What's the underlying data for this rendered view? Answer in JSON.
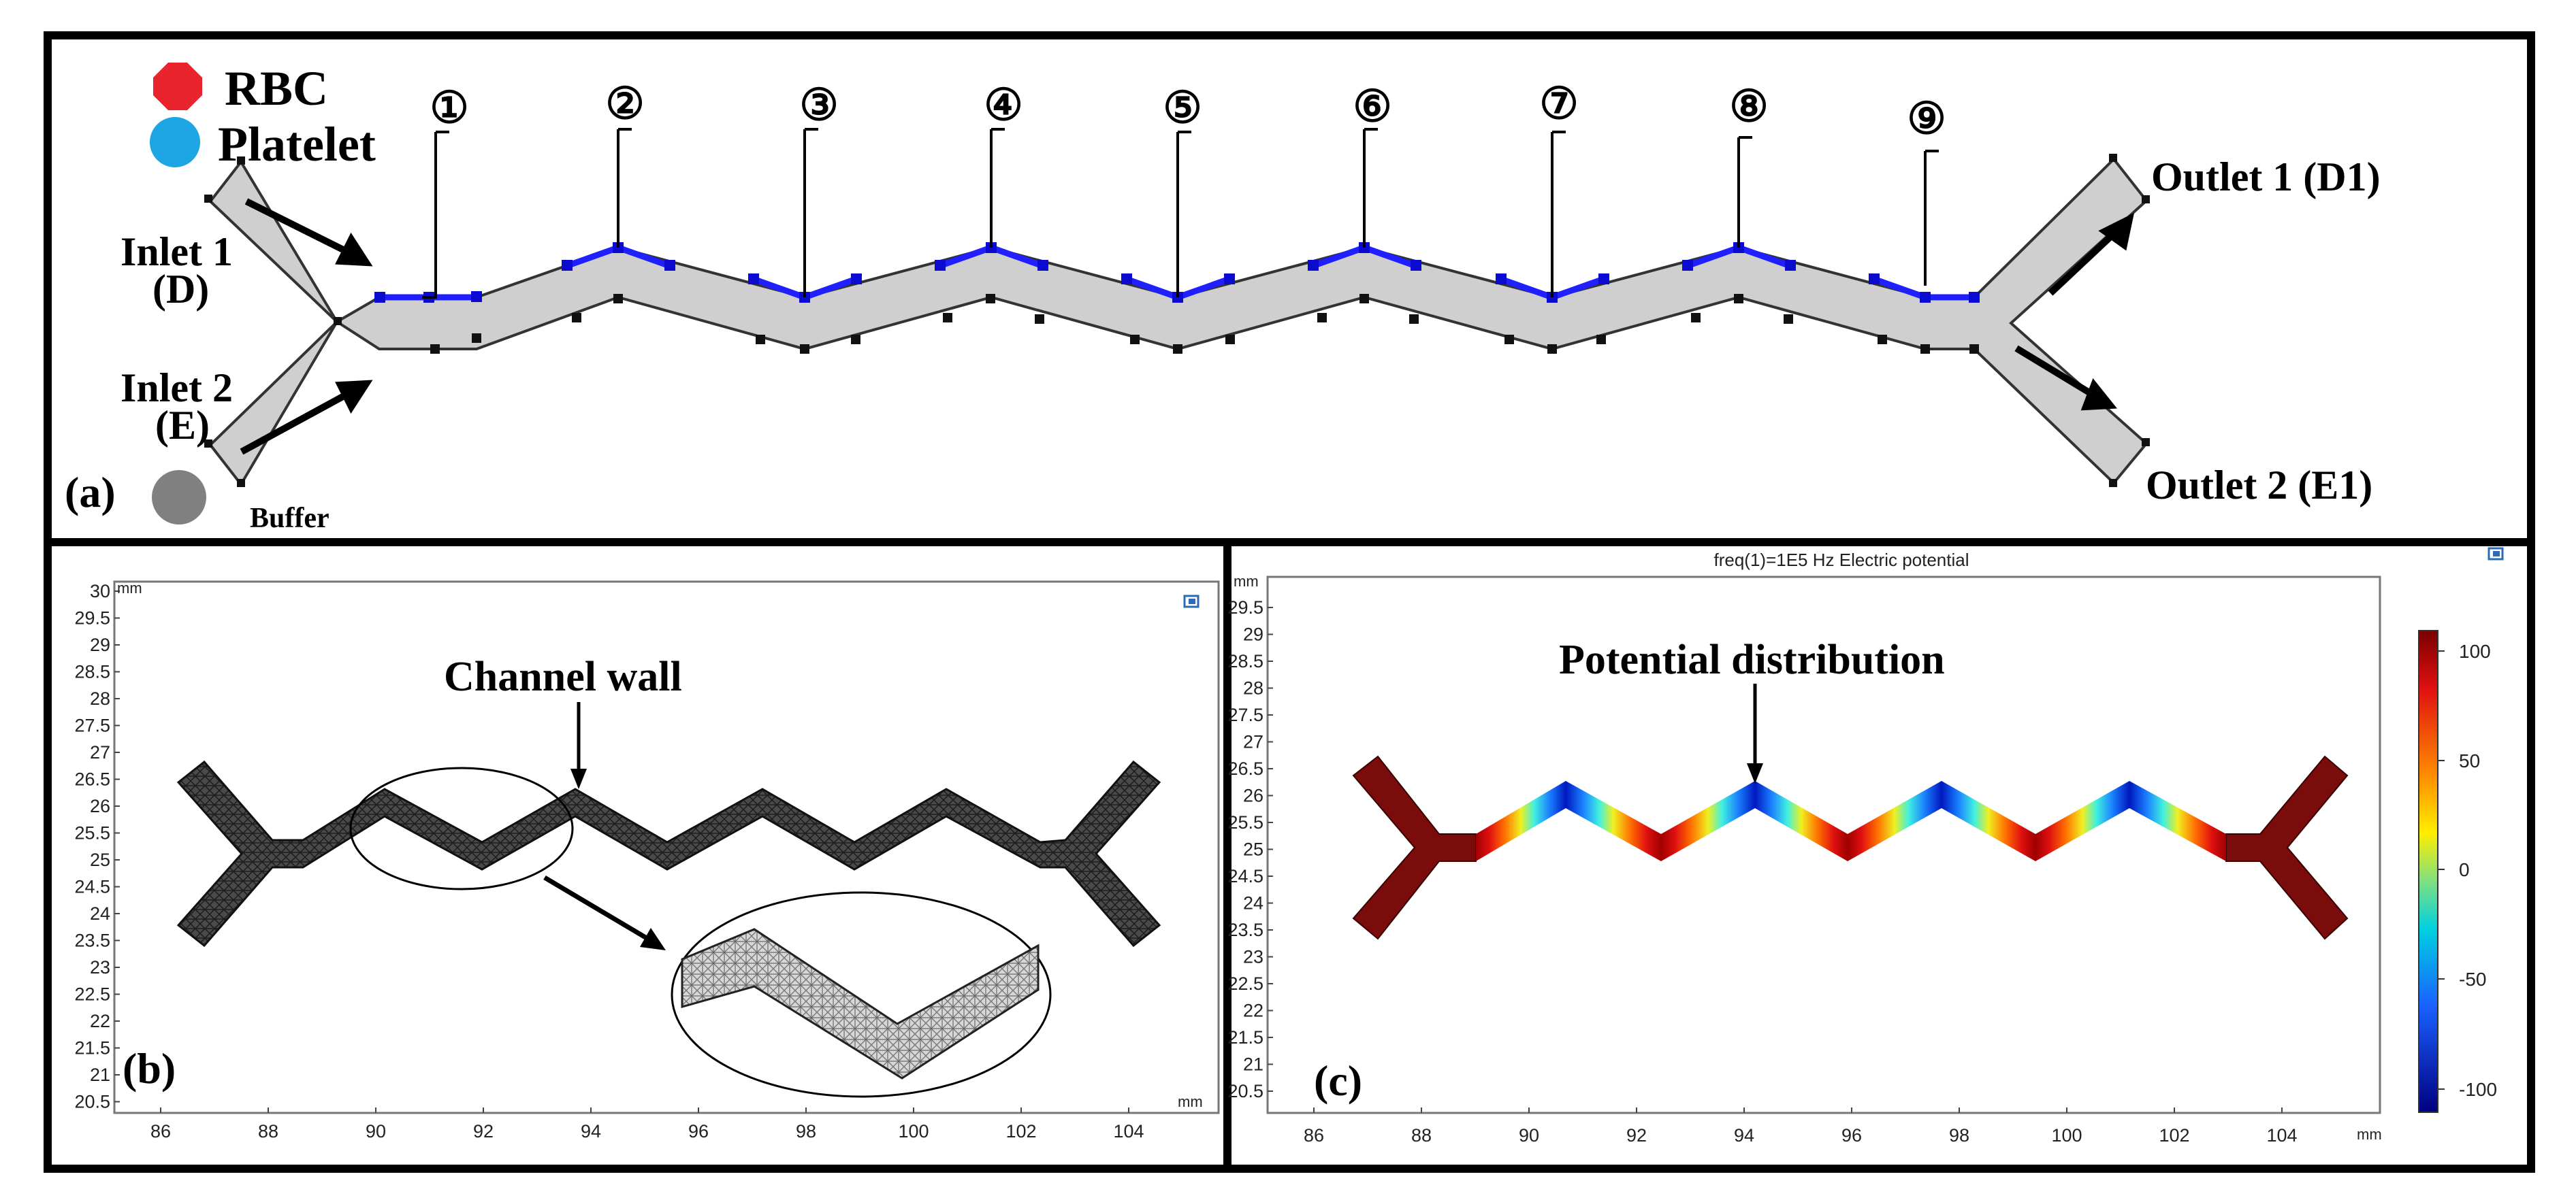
{
  "colors": {
    "rbc": "#e8232b",
    "platelet": "#1da6e3",
    "buffer": "#808080",
    "channel_fill": "#cfcfcf",
    "electrode_blue": "#1f1fff",
    "mesh_dark": "#3a3a3a",
    "potential_high": "#7a0c0c"
  },
  "panel_a": {
    "label": "(a)",
    "legend": {
      "rbc": "RBC",
      "platelet": "Platelet",
      "buffer": "Buffer"
    },
    "inlet1": {
      "line1": "Inlet 1",
      "line2": "(D)"
    },
    "inlet2": {
      "line1": "Inlet 2",
      "line2": "(E)"
    },
    "outlet1": "Outlet 1 (D1)",
    "outlet2": "Outlet 2 (E1)",
    "electrodes": [
      "①",
      "②",
      "③",
      "④",
      "⑤",
      "⑥",
      "⑦",
      "⑧",
      "⑨"
    ]
  },
  "panel_b": {
    "label": "(b)",
    "annotation": "Channel wall",
    "axis_unit_y": "mm",
    "axis_unit_x": "mm",
    "y_ticks": [
      "30",
      "29.5",
      "29",
      "28.5",
      "28",
      "27.5",
      "27",
      "26.5",
      "26",
      "25.5",
      "25",
      "24.5",
      "24",
      "23.5",
      "23",
      "22.5",
      "22",
      "21.5",
      "21",
      "20.5"
    ],
    "x_ticks": [
      "86",
      "88",
      "90",
      "92",
      "94",
      "96",
      "98",
      "100",
      "102",
      "104"
    ]
  },
  "panel_c": {
    "label": "(c)",
    "title": "freq(1)=1E5 Hz  Electric potential",
    "annotation": "Potential distribution",
    "axis_unit_y": "mm",
    "axis_unit_x": "mm",
    "y_ticks": [
      "29.5",
      "29",
      "28.5",
      "28",
      "27.5",
      "27",
      "26.5",
      "26",
      "25.5",
      "25",
      "24.5",
      "24",
      "23.5",
      "23",
      "22.5",
      "22",
      "21.5",
      "21",
      "20.5"
    ],
    "x_ticks": [
      "86",
      "88",
      "90",
      "92",
      "94",
      "96",
      "98",
      "100",
      "102",
      "104"
    ],
    "colorbar_ticks": [
      "100",
      "50",
      "0",
      "-50",
      "-100"
    ]
  }
}
